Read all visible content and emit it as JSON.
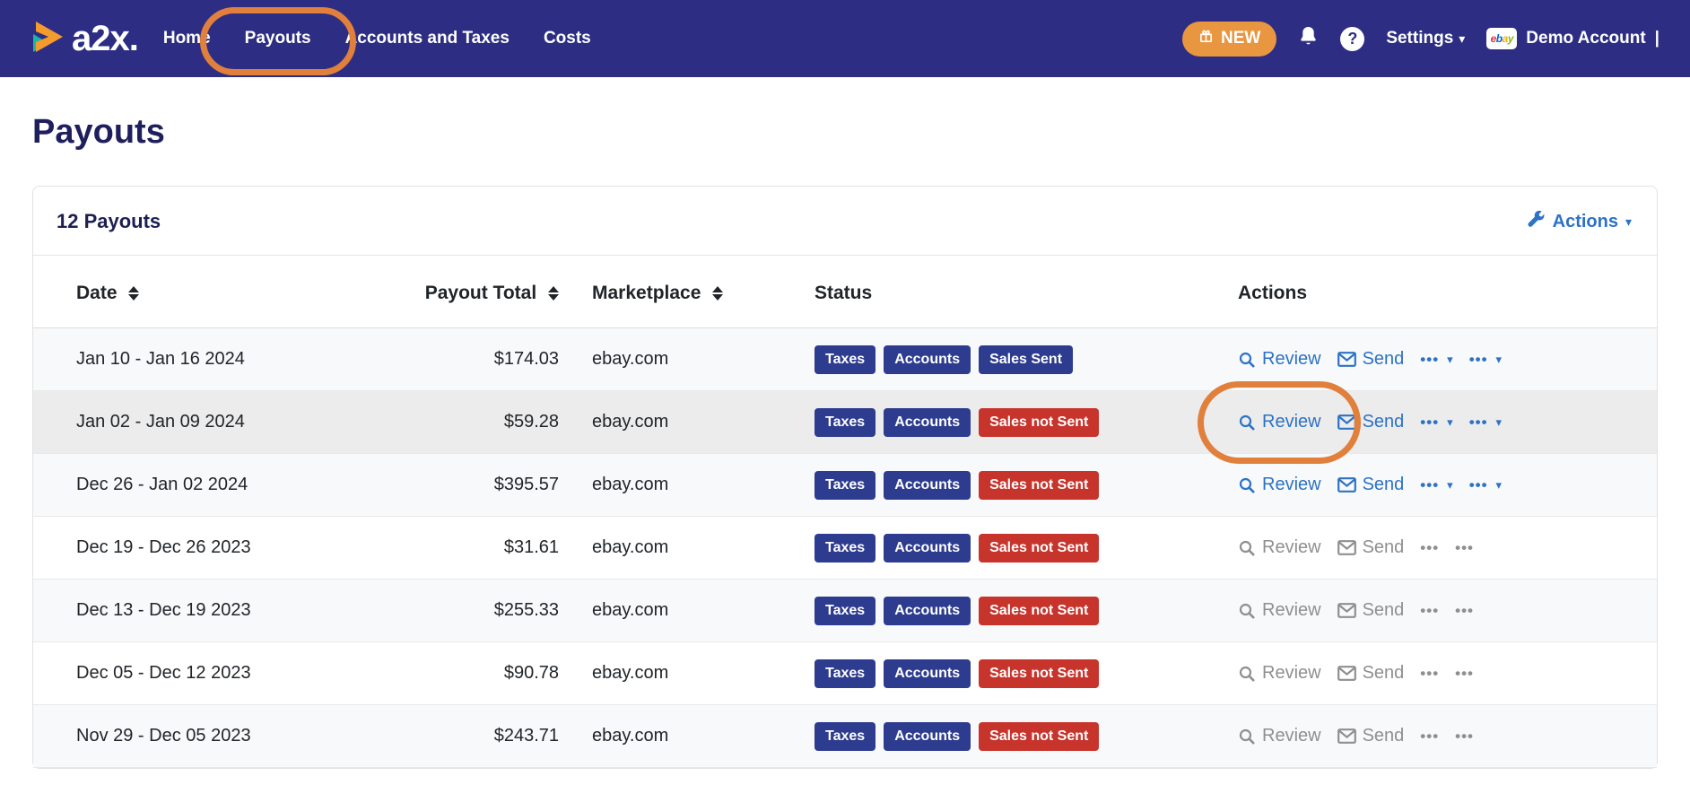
{
  "colors": {
    "navbar_bg": "#2d2e83",
    "accent_orange": "#e8963f",
    "annotation_orange": "#e0803c",
    "badge_navy": "#2d3c8f",
    "badge_red": "#c7342c",
    "link_blue": "#2d72c4",
    "title_navy": "#201f5e",
    "disabled_gray": "#8f8f8f"
  },
  "icons": {
    "ellipsis": "•••",
    "caret": "▾",
    "help": "?",
    "ebay": "ebay",
    "ebay_letter_colors": [
      "#e53238",
      "#0064d2",
      "#f5af02",
      "#86b817"
    ]
  },
  "navbar": {
    "logo_text": "a2x.",
    "items": [
      {
        "label": "Home"
      },
      {
        "label": "Payouts",
        "annotated": true
      },
      {
        "label": "Accounts and Taxes"
      },
      {
        "label": "Costs"
      }
    ],
    "new_badge_label": "NEW",
    "settings_label": "Settings",
    "account_label": "Demo Account",
    "account_separator": "|"
  },
  "page": {
    "title": "Payouts"
  },
  "card": {
    "count_label": "12 Payouts",
    "actions_label": "Actions"
  },
  "table": {
    "headers": {
      "date": "Date",
      "payout_total": "Payout Total",
      "marketplace": "Marketplace",
      "status": "Status",
      "actions": "Actions"
    },
    "row_actions": {
      "review": "Review",
      "send": "Send"
    },
    "rows": [
      {
        "date": "Jan 10 - Jan 16 2024",
        "total": "$174.03",
        "marketplace": "ebay.com",
        "badges": [
          {
            "label": "Taxes",
            "type": "navy"
          },
          {
            "label": "Accounts",
            "type": "navy"
          },
          {
            "label": "Sales Sent",
            "type": "navy"
          }
        ],
        "active": true,
        "highlighted": false,
        "annotated": false
      },
      {
        "date": "Jan 02 - Jan 09 2024",
        "total": "$59.28",
        "marketplace": "ebay.com",
        "badges": [
          {
            "label": "Taxes",
            "type": "navy"
          },
          {
            "label": "Accounts",
            "type": "navy"
          },
          {
            "label": "Sales not Sent",
            "type": "red"
          }
        ],
        "active": true,
        "highlighted": true,
        "annotated": true
      },
      {
        "date": "Dec 26 - Jan 02 2024",
        "total": "$395.57",
        "marketplace": "ebay.com",
        "badges": [
          {
            "label": "Taxes",
            "type": "navy"
          },
          {
            "label": "Accounts",
            "type": "navy"
          },
          {
            "label": "Sales not Sent",
            "type": "red"
          }
        ],
        "active": true,
        "highlighted": false,
        "annotated": false
      },
      {
        "date": "Dec 19 - Dec 26 2023",
        "total": "$31.61",
        "marketplace": "ebay.com",
        "badges": [
          {
            "label": "Taxes",
            "type": "navy"
          },
          {
            "label": "Accounts",
            "type": "navy"
          },
          {
            "label": "Sales not Sent",
            "type": "red"
          }
        ],
        "active": false,
        "highlighted": false,
        "annotated": false
      },
      {
        "date": "Dec 13 - Dec 19 2023",
        "total": "$255.33",
        "marketplace": "ebay.com",
        "badges": [
          {
            "label": "Taxes",
            "type": "navy"
          },
          {
            "label": "Accounts",
            "type": "navy"
          },
          {
            "label": "Sales not Sent",
            "type": "red"
          }
        ],
        "active": false,
        "highlighted": false,
        "annotated": false
      },
      {
        "date": "Dec 05 - Dec 12 2023",
        "total": "$90.78",
        "marketplace": "ebay.com",
        "badges": [
          {
            "label": "Taxes",
            "type": "navy"
          },
          {
            "label": "Accounts",
            "type": "navy"
          },
          {
            "label": "Sales not Sent",
            "type": "red"
          }
        ],
        "active": false,
        "highlighted": false,
        "annotated": false
      },
      {
        "date": "Nov 29 - Dec 05 2023",
        "total": "$243.71",
        "marketplace": "ebay.com",
        "badges": [
          {
            "label": "Taxes",
            "type": "navy"
          },
          {
            "label": "Accounts",
            "type": "navy"
          },
          {
            "label": "Sales not Sent",
            "type": "red"
          }
        ],
        "active": false,
        "highlighted": false,
        "annotated": false
      }
    ]
  }
}
